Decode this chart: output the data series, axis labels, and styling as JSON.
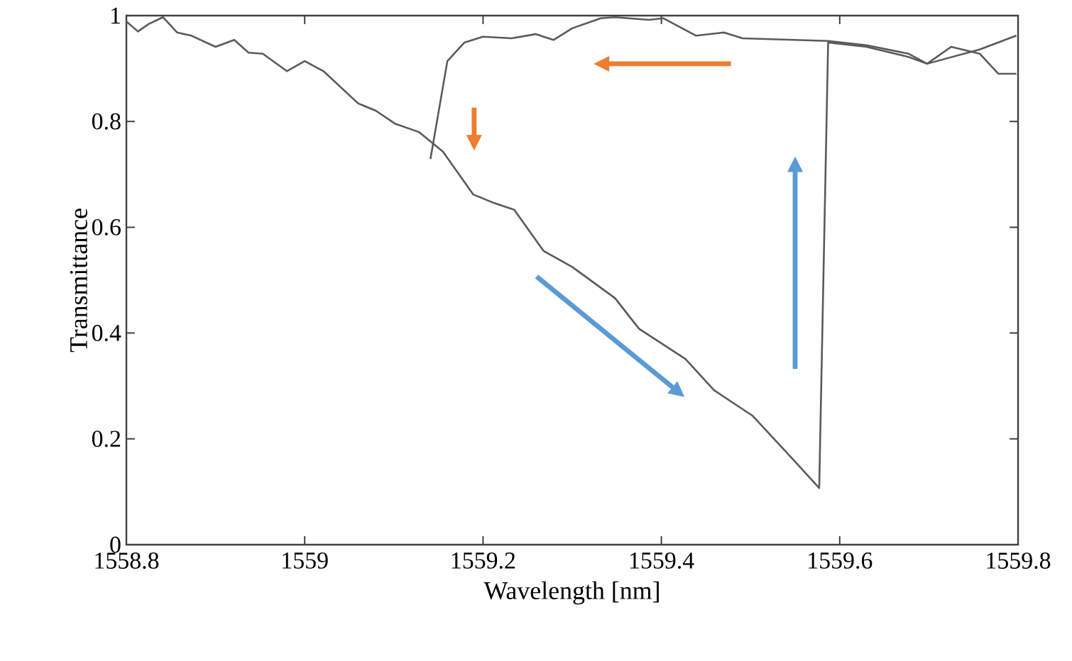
{
  "chart_data": {
    "type": "line",
    "xlabel": "Wavelength [nm]",
    "ylabel": "Transmittance",
    "xlim": [
      1558.8,
      1559.8
    ],
    "ylim": [
      0,
      1
    ],
    "xticks": [
      1558.8,
      1559,
      1559.2,
      1559.4,
      1559.6,
      1559.8
    ],
    "yticks": [
      0,
      0.2,
      0.4,
      0.6,
      0.8,
      1
    ],
    "grid": false,
    "marker": "none",
    "line_style": "solid",
    "series": [
      {
        "color": "#5a5a5a",
        "x": [
          1558.8,
          1558.813,
          1558.825,
          1558.841,
          1558.857,
          1558.873,
          1558.9,
          1558.921,
          1558.937,
          1558.953,
          1558.98,
          1559.0,
          1559.021,
          1559.06,
          1559.08,
          1559.101,
          1559.128,
          1559.155,
          1559.189,
          1559.212,
          1559.235,
          1559.268,
          1559.3,
          1559.348,
          1559.375,
          1559.427,
          1559.459,
          1559.502,
          1559.545,
          1559.577,
          1559.587,
          1559.63,
          1559.677,
          1559.698,
          1559.725,
          1559.757,
          1559.778,
          1559.798
        ],
        "values": [
          0.989,
          0.97,
          0.984,
          0.997,
          0.968,
          0.962,
          0.941,
          0.954,
          0.93,
          0.928,
          0.895,
          0.914,
          0.895,
          0.834,
          0.82,
          0.796,
          0.78,
          0.743,
          0.662,
          0.646,
          0.633,
          0.555,
          0.525,
          0.466,
          0.408,
          0.351,
          0.292,
          0.244,
          0.166,
          0.107,
          0.949,
          0.941,
          0.922,
          0.909,
          0.941,
          0.928,
          0.89,
          0.89
        ]
      },
      {
        "color": "#5a5a5a",
        "x": [
          1559.798,
          1559.757,
          1559.698,
          1559.677,
          1559.63,
          1559.587,
          1559.491,
          1559.47,
          1559.439,
          1559.402,
          1559.386,
          1559.348,
          1559.332,
          1559.3,
          1559.279,
          1559.259,
          1559.232,
          1559.2,
          1559.179,
          1559.16,
          1559.141
        ],
        "values": [
          0.962,
          0.936,
          0.909,
          0.928,
          0.944,
          0.952,
          0.957,
          0.968,
          0.962,
          0.995,
          0.992,
          0.997,
          0.995,
          0.976,
          0.954,
          0.965,
          0.957,
          0.96,
          0.949,
          0.914,
          0.729
        ]
      }
    ]
  }
}
